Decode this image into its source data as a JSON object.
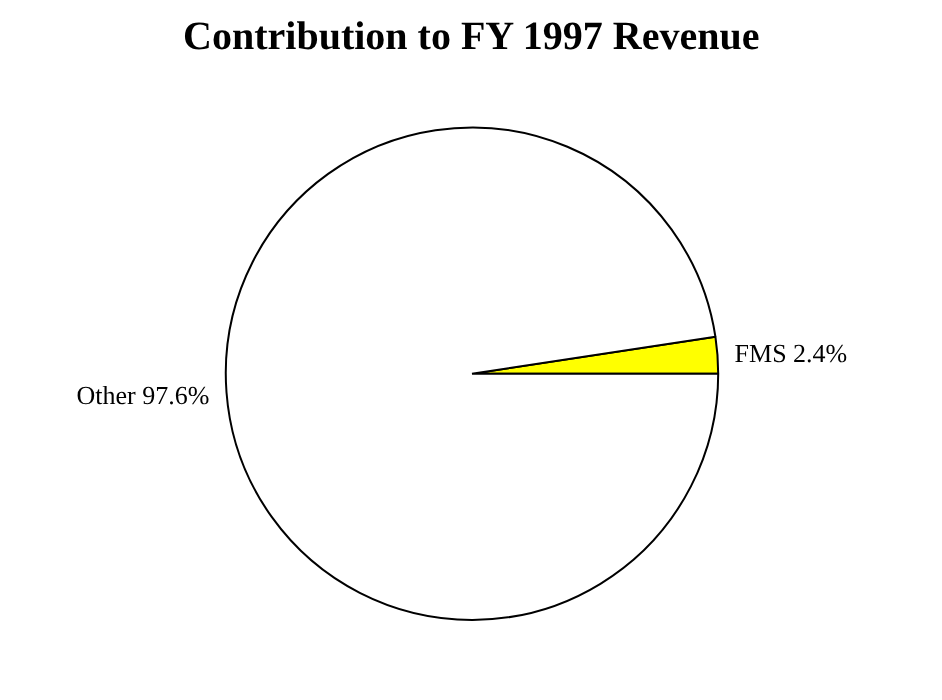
{
  "chart_data": {
    "type": "pie",
    "title": "Contribution to FY 1997 Revenue",
    "categories": [
      "FMS",
      "Other"
    ],
    "values": [
      2.4,
      97.6
    ],
    "value_labels": [
      "2.4%",
      "97.6%"
    ],
    "colors": [
      "#ffff00",
      "#ffffff"
    ]
  }
}
